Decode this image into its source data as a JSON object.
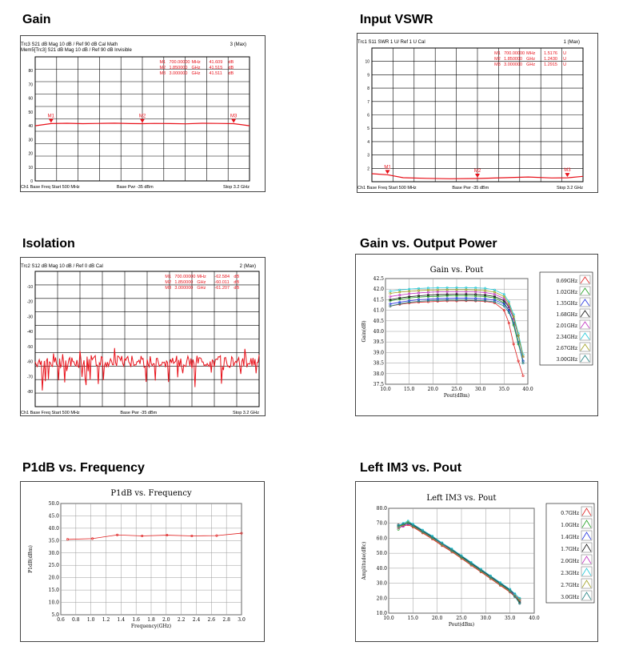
{
  "headings": {
    "gain": "Gain",
    "vswr": "Input VSWR",
    "isolation": "Isolation",
    "gain_pout": "Gain vs. Output Power",
    "p1db": "P1dB vs. Frequency",
    "im3": "Left  IM3  vs.  Pout"
  },
  "colors": {
    "trace": "#e8111a",
    "accent": "#d62020",
    "grid": "#000000"
  },
  "chart_data": [
    {
      "id": "gain",
      "type": "line",
      "title": "Gain",
      "header_lines": [
        "Trc3   S21  dB Mag  10 dB / Ref 90 dB    Cal Math",
        "Mem5[Trc3]  S21  dB Mag  10 dB / Ref 90 dB   Invisible"
      ],
      "header_right": "3 (Max)",
      "marker_table": [
        [
          "M1",
          "700.00000",
          "MHz",
          "41.609",
          "dB"
        ],
        [
          "M2",
          "1.850000",
          "GHz",
          "41.515",
          "dB"
        ],
        [
          "M3",
          "3.000000",
          "GHz",
          "41.511",
          "dB"
        ]
      ],
      "marker_labels": [
        "M1",
        "M2",
        "M3"
      ],
      "marker_x": [
        0.7,
        1.85,
        3.0
      ],
      "xlim": [
        0.5,
        3.2
      ],
      "ylim": [
        0,
        90
      ],
      "yticks": [
        0,
        10,
        20,
        30,
        40,
        50,
        60,
        70,
        80
      ],
      "x": [
        0.5,
        0.7,
        0.9,
        1.1,
        1.3,
        1.5,
        1.7,
        1.85,
        2.0,
        2.2,
        2.4,
        2.6,
        2.8,
        3.0,
        3.1,
        3.2
      ],
      "values": [
        40.0,
        41.6,
        41.8,
        41.5,
        41.7,
        41.9,
        41.6,
        41.5,
        41.7,
        41.6,
        41.4,
        41.8,
        41.7,
        41.5,
        40.8,
        40.0
      ],
      "footer_left": "Ch1  Base Freq  Start  500 MHz",
      "footer_mid": "Base Pwr   -35 dBm",
      "footer_right": "Stop  3.2 GHz"
    },
    {
      "id": "vswr",
      "type": "line",
      "title": "Input VSWR",
      "header_lines": [
        "Trc1  S11  SWR  1 U/  Ref 1 U    Cal"
      ],
      "header_right": "1 (Max)",
      "marker_table": [
        [
          "M1",
          "700.00000",
          "MHz",
          "1.5176",
          "U"
        ],
        [
          "M2",
          "1.850000",
          "GHz",
          "1.2430",
          "U"
        ],
        [
          "M3",
          "3.000000",
          "GHz",
          "1.2915",
          "U"
        ]
      ],
      "marker_labels": [
        "M1",
        "M2",
        "M3"
      ],
      "marker_x": [
        0.7,
        1.85,
        3.0
      ],
      "xlim": [
        0.5,
        3.2
      ],
      "ylim": [
        1,
        11
      ],
      "yticks": [
        10,
        9,
        8,
        7,
        6,
        5,
        4,
        3,
        2
      ],
      "x": [
        0.5,
        0.7,
        0.9,
        1.2,
        1.5,
        1.85,
        2.2,
        2.5,
        2.8,
        3.0,
        3.2
      ],
      "values": [
        1.6,
        1.52,
        1.3,
        1.25,
        1.22,
        1.24,
        1.3,
        1.35,
        1.28,
        1.29,
        1.4
      ],
      "footer_left": "Ch1  Base Freq  Start  500 MHz",
      "footer_mid": "Base Pwr   -35 dBm",
      "footer_right": "Stop  3.2 GHz"
    },
    {
      "id": "isolation",
      "type": "line",
      "title": "Isolation",
      "header_lines": [
        "Trc2  S12  dB Mag  10 dB / Ref 0 dB    Cal"
      ],
      "header_right": "2 (Max)",
      "marker_table": [
        [
          "M1",
          "700.00000",
          "MHz",
          "-62.584",
          "dB"
        ],
        [
          "M2",
          "1.850000",
          "GHz",
          "-60.011",
          "dB"
        ],
        [
          "M3",
          "3.000000",
          "GHz",
          "-61.207",
          "dB"
        ]
      ],
      "xlim": [
        0.5,
        3.2
      ],
      "ylim": [
        -90,
        0
      ],
      "yticks": [
        -10,
        -20,
        -30,
        -40,
        -50,
        -60,
        -70,
        -80
      ],
      "noise_center": -60,
      "footer_left": "Ch1  Base Freq  Start  500 MHz",
      "footer_mid": "Base Pwr   -35 dBm",
      "footer_right": "Stop  3.2 GHz"
    },
    {
      "id": "gain_pout",
      "type": "line",
      "title": "Gain vs. Pout",
      "xlabel": "Pout(dBm)",
      "ylabel": "Gain(dB)",
      "xlim": [
        10,
        40
      ],
      "ylim": [
        37.5,
        42.5
      ],
      "xticks": [
        10.0,
        15.0,
        20.0,
        25.0,
        30.0,
        35.0,
        40.0
      ],
      "yticks": [
        37.5,
        38.0,
        38.5,
        39.0,
        39.5,
        40.0,
        40.5,
        41.0,
        41.5,
        42.0,
        42.5
      ],
      "x": [
        11,
        13,
        15,
        17,
        19,
        21,
        23,
        25,
        27,
        29,
        31,
        33,
        35,
        36,
        37,
        38,
        39
      ],
      "series": [
        {
          "name": "0.69GHz",
          "color": "#e02020",
          "values": [
            41.2,
            41.28,
            41.34,
            41.38,
            41.4,
            41.42,
            41.44,
            41.44,
            41.45,
            41.44,
            41.42,
            41.35,
            41.0,
            40.4,
            39.4,
            38.6,
            37.9
          ]
        },
        {
          "name": "1.02GHz",
          "color": "#20a020",
          "values": [
            41.45,
            41.52,
            41.58,
            41.62,
            41.65,
            41.66,
            41.68,
            41.68,
            41.68,
            41.67,
            41.65,
            41.58,
            41.35,
            41.0,
            40.3,
            39.4,
            38.6
          ]
        },
        {
          "name": "1.35GHz",
          "color": "#2030e0",
          "values": [
            41.3,
            41.38,
            41.45,
            41.5,
            41.52,
            41.55,
            41.56,
            41.57,
            41.57,
            41.56,
            41.54,
            41.48,
            41.3,
            41.0,
            40.4,
            39.5,
            38.6
          ]
        },
        {
          "name": "1.68GHz",
          "color": "#101010",
          "values": [
            41.5,
            41.58,
            41.64,
            41.68,
            41.72,
            41.74,
            41.75,
            41.76,
            41.76,
            41.75,
            41.72,
            41.65,
            41.45,
            41.15,
            40.6,
            39.8,
            38.8
          ]
        },
        {
          "name": "2.01GHz",
          "color": "#c030c0",
          "values": [
            41.65,
            41.72,
            41.78,
            41.82,
            41.85,
            41.87,
            41.88,
            41.88,
            41.88,
            41.87,
            41.84,
            41.76,
            41.55,
            41.2,
            40.6,
            39.8,
            38.8
          ]
        },
        {
          "name": "2.34GHz",
          "color": "#20c8d8",
          "values": [
            41.9,
            41.96,
            42.0,
            42.03,
            42.05,
            42.06,
            42.07,
            42.07,
            42.07,
            42.06,
            42.04,
            41.96,
            41.75,
            41.4,
            40.8,
            39.9,
            38.9
          ]
        },
        {
          "name": "2.67GHz",
          "color": "#a0a020",
          "values": [
            41.8,
            41.86,
            41.9,
            41.93,
            41.95,
            41.96,
            41.97,
            41.97,
            41.97,
            41.96,
            41.93,
            41.86,
            41.65,
            41.3,
            40.7,
            39.8,
            38.8
          ]
        },
        {
          "name": "3.00GHz",
          "color": "#208080",
          "values": [
            41.2,
            41.3,
            41.38,
            41.42,
            41.45,
            41.47,
            41.48,
            41.48,
            41.48,
            41.47,
            41.45,
            41.4,
            41.2,
            40.9,
            40.4,
            39.5,
            38.5
          ]
        }
      ]
    },
    {
      "id": "p1db",
      "type": "line",
      "title": "P1dB  vs.  Frequency",
      "xlabel": "Frequency(GHz)",
      "ylabel": "P1dB(dBm)",
      "xlim": [
        0.6,
        3.0
      ],
      "ylim": [
        5.0,
        50.0
      ],
      "xticks": [
        0.6,
        0.8,
        1.0,
        1.2,
        1.4,
        1.6,
        1.8,
        2.0,
        2.2,
        2.4,
        2.6,
        2.8,
        3.0
      ],
      "yticks": [
        5.0,
        10.0,
        15.0,
        20.0,
        25.0,
        30.0,
        35.0,
        40.0,
        45.0,
        50.0
      ],
      "x": [
        0.69,
        1.02,
        1.35,
        1.68,
        2.01,
        2.34,
        2.67,
        3.0
      ],
      "values": [
        35.5,
        35.8,
        37.3,
        36.9,
        37.2,
        36.9,
        37.0,
        38.0
      ]
    },
    {
      "id": "im3",
      "type": "line",
      "title": "Left  IM3  vs.  Pout",
      "xlabel": "Pout(dBm)",
      "ylabel": "Amplitude(dBc)",
      "xlim": [
        10,
        40
      ],
      "ylim": [
        10,
        80
      ],
      "xticks": [
        10.0,
        15.0,
        20.0,
        25.0,
        30.0,
        35.0,
        40.0
      ],
      "yticks": [
        10.0,
        20.0,
        30.0,
        40.0,
        50.0,
        60.0,
        70.0,
        80.0
      ],
      "x": [
        12,
        13,
        14,
        15,
        17,
        19,
        21,
        23,
        25,
        27,
        29,
        31,
        33,
        35,
        36,
        37
      ],
      "series": [
        {
          "name": "0.7GHz",
          "color": "#e02020",
          "values": [
            68.5,
            68.0,
            69.0,
            67.5,
            63.5,
            59.5,
            55.0,
            51.0,
            46.5,
            42.0,
            37.5,
            33.0,
            28.5,
            24.0,
            21.0,
            18.5
          ]
        },
        {
          "name": "1.0GHz",
          "color": "#20a020",
          "values": [
            66.0,
            69.0,
            71.0,
            68.5,
            64.5,
            60.5,
            56.0,
            52.0,
            47.5,
            43.0,
            38.5,
            34.0,
            29.5,
            25.0,
            22.0,
            19.5
          ]
        },
        {
          "name": "1.4GHz",
          "color": "#2030e0",
          "values": [
            68.0,
            69.5,
            70.0,
            68.0,
            64.0,
            60.0,
            55.5,
            51.5,
            47.0,
            42.5,
            38.0,
            33.5,
            29.0,
            24.5,
            21.5,
            18.0
          ]
        },
        {
          "name": "1.7GHz",
          "color": "#101010",
          "values": [
            69.0,
            68.5,
            70.5,
            69.0,
            65.0,
            61.0,
            56.5,
            52.5,
            48.0,
            43.5,
            39.0,
            34.5,
            30.0,
            25.5,
            22.5,
            17.0
          ]
        },
        {
          "name": "2.0GHz",
          "color": "#c030c0",
          "values": [
            67.0,
            68.0,
            69.5,
            68.5,
            64.5,
            60.5,
            56.0,
            52.0,
            47.5,
            43.0,
            38.5,
            34.0,
            29.5,
            25.0,
            22.0,
            19.0
          ]
        },
        {
          "name": "2.3GHz",
          "color": "#20c8d8",
          "values": [
            68.5,
            70.0,
            71.5,
            69.5,
            65.5,
            61.5,
            57.0,
            53.0,
            48.5,
            44.0,
            39.5,
            35.0,
            30.5,
            26.0,
            23.0,
            20.0
          ]
        },
        {
          "name": "2.7GHz",
          "color": "#a0a020",
          "values": [
            67.5,
            69.0,
            70.5,
            68.0,
            64.0,
            60.0,
            55.5,
            51.5,
            47.0,
            42.5,
            38.0,
            33.5,
            29.0,
            24.5,
            21.5,
            18.5
          ]
        },
        {
          "name": "3.0GHz",
          "color": "#208080",
          "values": [
            68.0,
            69.5,
            70.0,
            68.5,
            64.5,
            60.5,
            56.5,
            52.0,
            47.5,
            43.0,
            38.5,
            34.0,
            29.5,
            25.0,
            21.0,
            16.5
          ]
        }
      ]
    }
  ]
}
